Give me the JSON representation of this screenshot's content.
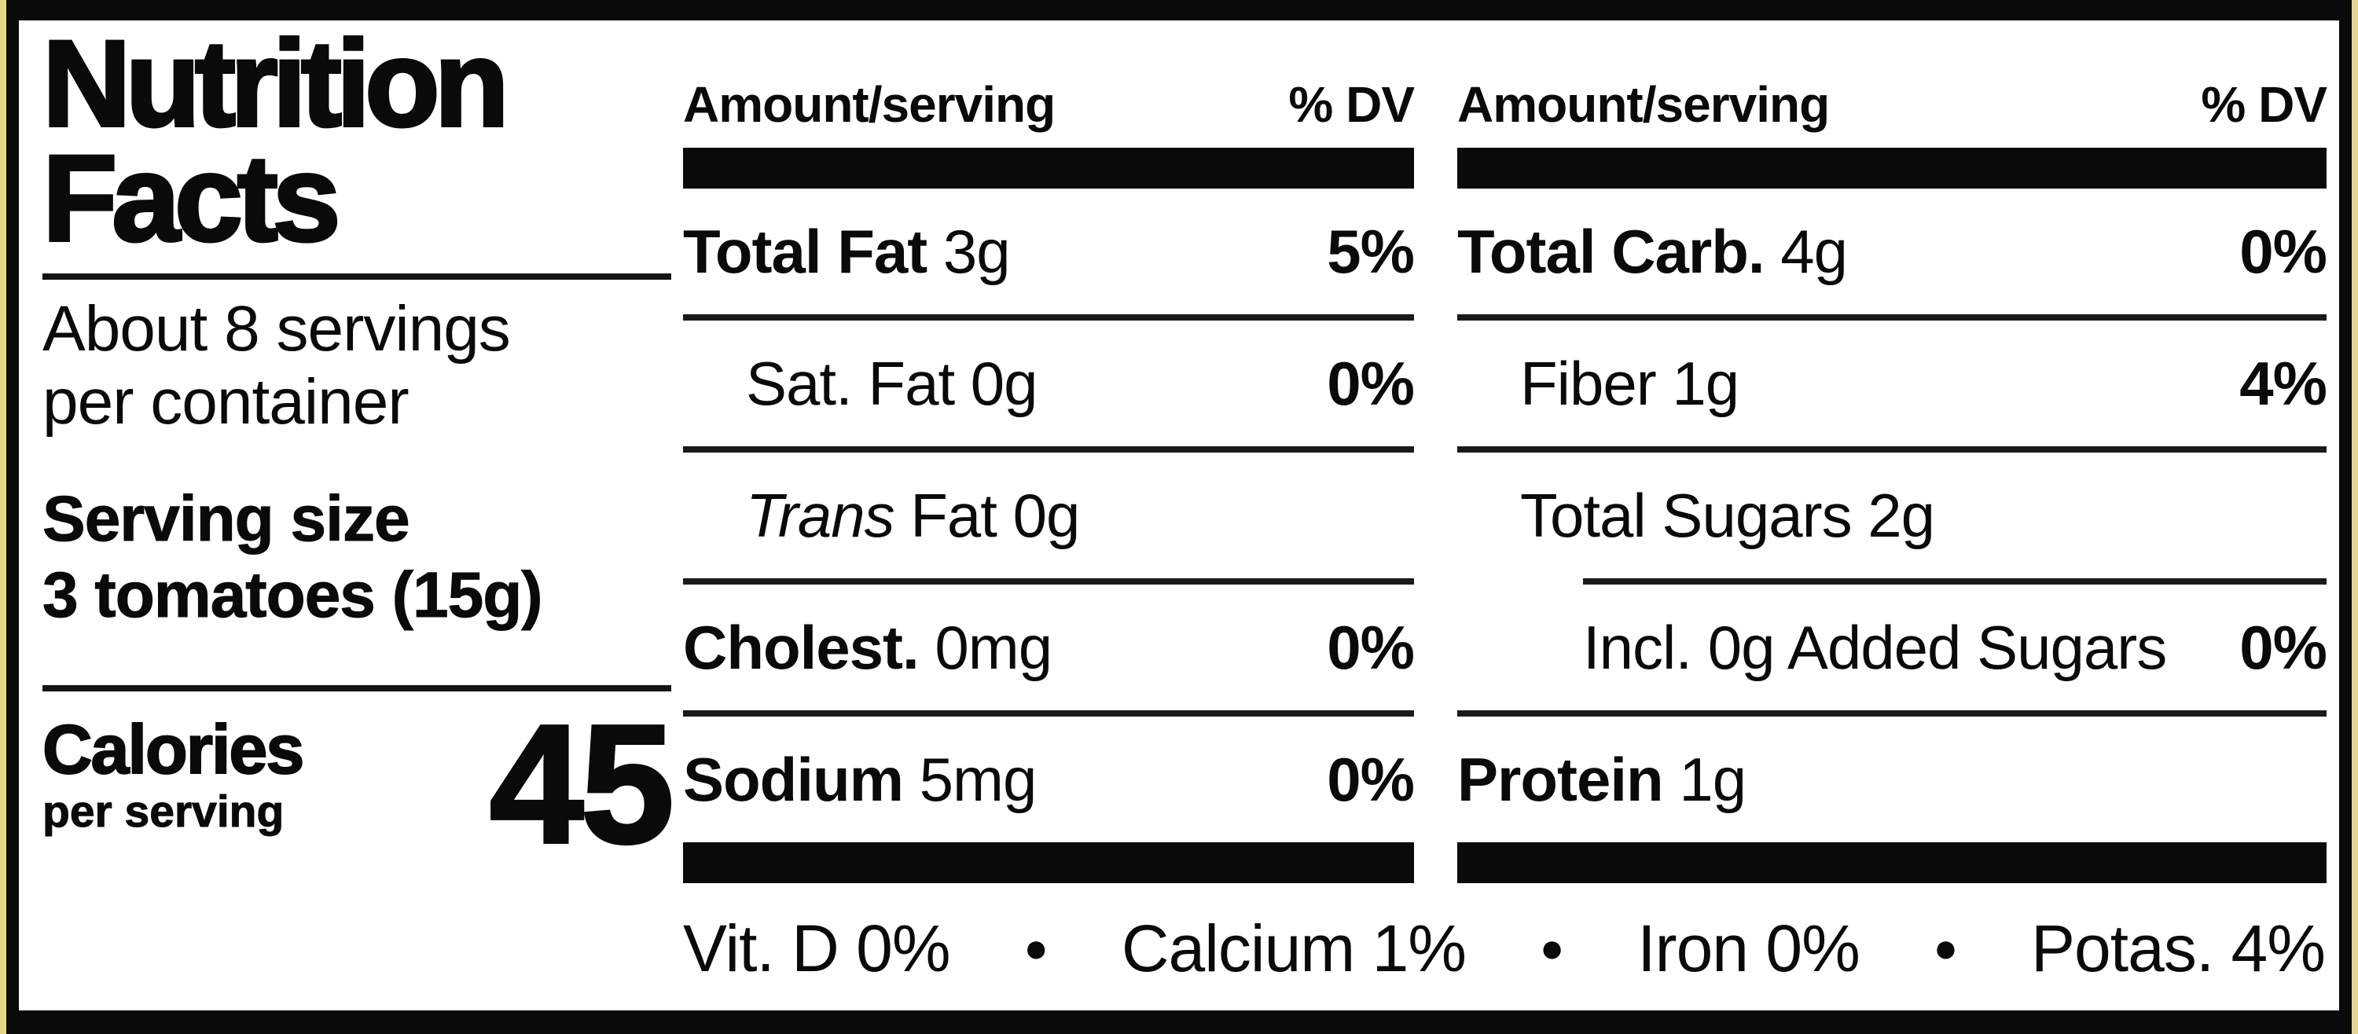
{
  "left": {
    "title_line1": "Nutrition",
    "title_line2": "Facts",
    "servings_line1": "About 8 servings",
    "servings_line2": "per container",
    "serving_size_label": "Serving size",
    "serving_size_value": "3 tomatoes (15g)",
    "calories_label": "Calories",
    "calories_sublabel": "per serving",
    "calories_value": "45"
  },
  "middle": {
    "header_amount": "Amount/serving",
    "header_dv": "% DV",
    "rows": [
      {
        "bold": "Total Fat",
        "rest": " 3g",
        "dv": "5%"
      },
      {
        "rest": "Sat. Fat 0g",
        "dv": "0%"
      },
      {
        "italic": "Trans",
        "rest": " Fat 0g",
        "dv": ""
      },
      {
        "bold": "Cholest.",
        "rest": " 0mg",
        "dv": "0%"
      },
      {
        "bold": "Sodium",
        "rest": " 5mg",
        "dv": "0%"
      }
    ]
  },
  "right": {
    "header_amount": "Amount/serving",
    "header_dv": "% DV",
    "rows": [
      {
        "bold": "Total Carb.",
        "rest": " 4g",
        "dv": "0%"
      },
      {
        "rest": "Fiber 1g",
        "dv": "4%"
      },
      {
        "rest": "Total Sugars 2g",
        "dv": ""
      },
      {
        "rest": "Incl. 0g Added Sugars",
        "dv": "0%"
      },
      {
        "bold": "Protein",
        "rest": " 1g",
        "dv": ""
      }
    ]
  },
  "bottom": {
    "separator": "●",
    "items": [
      {
        "label": "Vit. D 0%"
      },
      {
        "label": "Calcium 1%"
      },
      {
        "label": "Iron 0%"
      },
      {
        "label": "Potas. 4%"
      }
    ]
  },
  "colors": {
    "background": "#ffffff",
    "text": "#0a0a0a",
    "frame": "#0a0a0a",
    "edge_strip": "#e5d78a"
  }
}
